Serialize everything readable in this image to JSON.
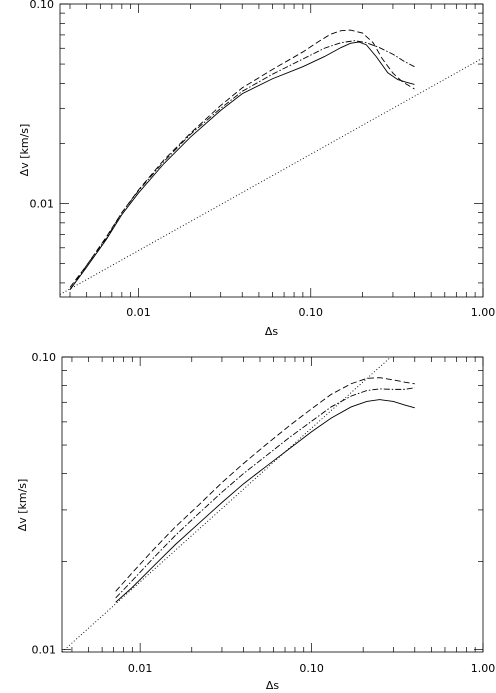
{
  "chart_data": [
    {
      "type": "line",
      "xlabel": "Δs",
      "ylabel": "Δv  [km/s]",
      "xscale": "log",
      "yscale": "log",
      "xlim": [
        0.0035,
        1.0
      ],
      "ylim": [
        0.0034,
        0.1
      ],
      "grid": false,
      "xticks": [
        {
          "value": 0.01,
          "label": "0.01"
        },
        {
          "value": 0.1,
          "label": "0.10"
        },
        {
          "value": 1.0,
          "label": "1.00"
        }
      ],
      "yticks": [
        {
          "value": 0.01,
          "label": "0.01"
        },
        {
          "value": 0.1,
          "label": "0.10"
        }
      ],
      "series": [
        {
          "style": "solid",
          "x": [
            0.004,
            0.005,
            0.0065,
            0.008,
            0.01,
            0.014,
            0.02,
            0.03,
            0.04,
            0.06,
            0.09,
            0.12,
            0.15,
            0.17,
            0.19,
            0.21,
            0.24,
            0.28,
            0.32,
            0.36,
            0.4
          ],
          "y": [
            0.0037,
            0.0048,
            0.0066,
            0.0088,
            0.0113,
            0.0158,
            0.0215,
            0.0293,
            0.0355,
            0.0422,
            0.0485,
            0.0545,
            0.0605,
            0.0635,
            0.0645,
            0.0625,
            0.0545,
            0.0452,
            0.0418,
            0.0405,
            0.0395
          ]
        },
        {
          "style": "dashed",
          "x": [
            0.004,
            0.005,
            0.0065,
            0.008,
            0.01,
            0.014,
            0.02,
            0.03,
            0.04,
            0.06,
            0.09,
            0.11,
            0.13,
            0.15,
            0.17,
            0.2,
            0.23,
            0.26,
            0.3,
            0.34,
            0.38,
            0.4
          ],
          "y": [
            0.0038,
            0.0049,
            0.0068,
            0.009,
            0.0117,
            0.0165,
            0.0225,
            0.031,
            0.038,
            0.047,
            0.0575,
            0.0645,
            0.0705,
            0.0735,
            0.074,
            0.0715,
            0.064,
            0.0532,
            0.045,
            0.0408,
            0.0385,
            0.0375
          ]
        },
        {
          "style": "dash-dot",
          "x": [
            0.004,
            0.005,
            0.0065,
            0.008,
            0.01,
            0.014,
            0.02,
            0.03,
            0.04,
            0.06,
            0.09,
            0.12,
            0.15,
            0.18,
            0.21,
            0.25,
            0.3,
            0.35,
            0.4
          ],
          "y": [
            0.0037,
            0.0049,
            0.0067,
            0.009,
            0.0116,
            0.0162,
            0.0222,
            0.03,
            0.0365,
            0.0445,
            0.053,
            0.06,
            0.064,
            0.0655,
            0.064,
            0.0605,
            0.056,
            0.0515,
            0.0485
          ]
        },
        {
          "style": "dotted",
          "x": [
            0.0035,
            1.0
          ],
          "y": [
            0.0035,
            0.0537
          ]
        }
      ]
    },
    {
      "type": "line",
      "xlabel": "Δs",
      "ylabel": "Δv  [km/s]",
      "xscale": "log",
      "yscale": "log",
      "xlim": [
        0.0035,
        1.0
      ],
      "ylim": [
        0.0098,
        0.1
      ],
      "grid": false,
      "xticks": [
        {
          "value": 0.01,
          "label": "0.01"
        },
        {
          "value": 0.1,
          "label": "0.10"
        },
        {
          "value": 1.0,
          "label": "1.00"
        }
      ],
      "yticks": [
        {
          "value": 0.01,
          "label": "0.01"
        },
        {
          "value": 0.1,
          "label": "0.10"
        }
      ],
      "series": [
        {
          "style": "solid",
          "x": [
            0.0072,
            0.009,
            0.012,
            0.016,
            0.022,
            0.03,
            0.04,
            0.055,
            0.075,
            0.1,
            0.13,
            0.17,
            0.21,
            0.25,
            0.3,
            0.35,
            0.4
          ],
          "y": [
            0.0145,
            0.0163,
            0.0193,
            0.0228,
            0.027,
            0.0318,
            0.0368,
            0.0425,
            0.0488,
            0.0555,
            0.0618,
            0.0675,
            0.0705,
            0.0715,
            0.0705,
            0.0685,
            0.067
          ]
        },
        {
          "style": "dashed",
          "x": [
            0.0072,
            0.009,
            0.012,
            0.016,
            0.022,
            0.03,
            0.04,
            0.055,
            0.075,
            0.1,
            0.13,
            0.17,
            0.21,
            0.25,
            0.3,
            0.35,
            0.4
          ],
          "y": [
            0.0158,
            0.0183,
            0.022,
            0.0262,
            0.0312,
            0.0372,
            0.0432,
            0.0505,
            0.0585,
            0.0665,
            0.0745,
            0.081,
            0.0845,
            0.085,
            0.0835,
            0.082,
            0.081
          ]
        },
        {
          "style": "dash-dot",
          "x": [
            0.0072,
            0.009,
            0.012,
            0.016,
            0.022,
            0.03,
            0.04,
            0.055,
            0.075,
            0.1,
            0.13,
            0.17,
            0.21,
            0.25,
            0.3,
            0.35,
            0.4
          ],
          "y": [
            0.015,
            0.0172,
            0.0206,
            0.0245,
            0.0292,
            0.0345,
            0.0399,
            0.0462,
            0.0533,
            0.0603,
            0.0675,
            0.0735,
            0.0768,
            0.0778,
            0.0775,
            0.0775,
            0.0785
          ]
        },
        {
          "style": "dotted",
          "x": [
            0.0035,
            0.29
          ],
          "y": [
            0.0098,
            0.1
          ]
        }
      ]
    }
  ]
}
